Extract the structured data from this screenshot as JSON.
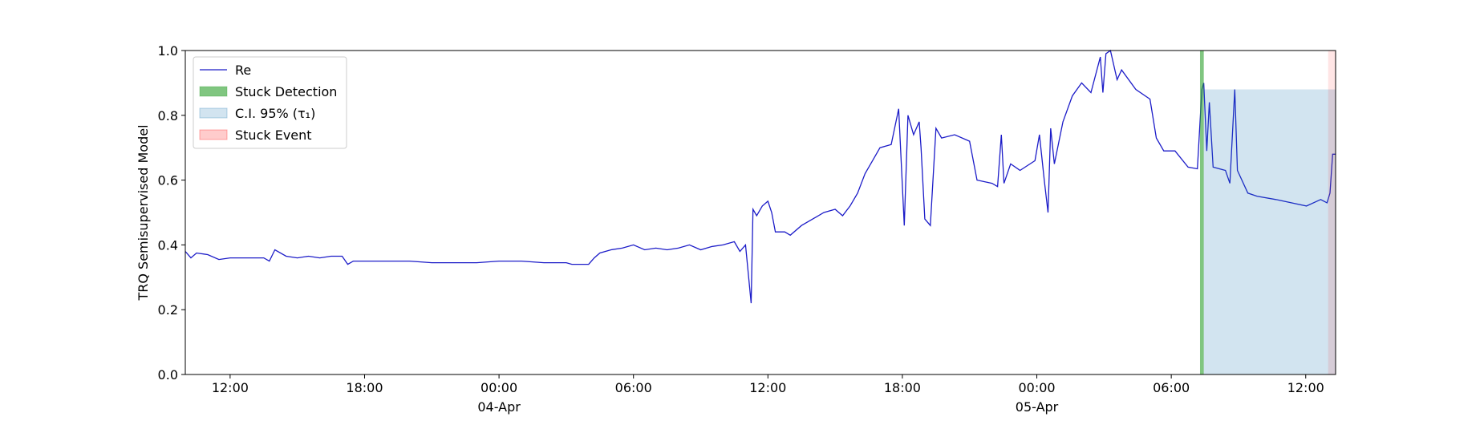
{
  "chart_data": {
    "type": "line",
    "ylabel": "TRQ Semisupervised Model",
    "xlim": [
      "1900-04-03T10:00",
      "1900-04-05T13:20"
    ],
    "xticks": [
      {
        "value": "1900-04-03T12:00",
        "label": "12:00"
      },
      {
        "value": "1900-04-03T18:00",
        "label": "18:00"
      },
      {
        "value": "1900-04-04T00:00",
        "label": "00:00\n04-Apr\n1900"
      },
      {
        "value": "1900-04-04T06:00",
        "label": "06:00"
      },
      {
        "value": "1900-04-04T12:00",
        "label": "12:00"
      },
      {
        "value": "1900-04-04T18:00",
        "label": "18:00"
      },
      {
        "value": "1900-04-05T00:00",
        "label": "00:00\n05-Apr"
      },
      {
        "value": "1900-04-05T06:00",
        "label": "06:00"
      },
      {
        "value": "1900-04-05T12:00",
        "label": "12:00"
      }
    ],
    "ylim": [
      0,
      1
    ],
    "yticks": [
      {
        "value": 0,
        "label": "0.0"
      },
      0.2,
      0.4,
      0.6,
      0.8,
      {
        "value": 1,
        "label": "1.0"
      }
    ],
    "legend": "upper left",
    "x": [
      "1900-04-03T10:00",
      "1900-04-03T10:15",
      "1900-04-03T10:30",
      "1900-04-03T11:00",
      "1900-04-03T11:30",
      "1900-04-03T12:00",
      "1900-04-03T13:00",
      "1900-04-03T13:30",
      "1900-04-03T13:45",
      "1900-04-03T14:00",
      "1900-04-03T14:30",
      "1900-04-03T15:00",
      "1900-04-03T15:30",
      "1900-04-03T16:00",
      "1900-04-03T16:30",
      "1900-04-03T17:00",
      "1900-04-03T17:15",
      "1900-04-03T17:30",
      "1900-04-03T18:00",
      "1900-04-03T19:00",
      "1900-04-03T20:00",
      "1900-04-03T21:00",
      "1900-04-03T22:00",
      "1900-04-03T23:00",
      "1900-04-04T00:00",
      "1900-04-04T01:00",
      "1900-04-04T02:00",
      "1900-04-04T03:00",
      "1900-04-04T03:15",
      "1900-04-04T04:00",
      "1900-04-04T04:15",
      "1900-04-04T04:30",
      "1900-04-04T05:00",
      "1900-04-04T05:30",
      "1900-04-04T06:00",
      "1900-04-04T06:30",
      "1900-04-04T07:00",
      "1900-04-04T07:30",
      "1900-04-04T08:00",
      "1900-04-04T08:30",
      "1900-04-04T09:00",
      "1900-04-04T09:30",
      "1900-04-04T10:00",
      "1900-04-04T10:30",
      "1900-04-04T10:45",
      "1900-04-04T11:00",
      "1900-04-04T11:15",
      "1900-04-04T11:20",
      "1900-04-04T11:30",
      "1900-04-04T11:45",
      "1900-04-04T12:00",
      "1900-04-04T12:10",
      "1900-04-04T12:20",
      "1900-04-04T12:45",
      "1900-04-04T13:00",
      "1900-04-04T13:30",
      "1900-04-04T14:00",
      "1900-04-04T14:30",
      "1900-04-04T15:00",
      "1900-04-04T15:20",
      "1900-04-04T15:40",
      "1900-04-04T16:00",
      "1900-04-04T16:20",
      "1900-04-04T16:40",
      "1900-04-04T17:00",
      "1900-04-04T17:30",
      "1900-04-04T17:50",
      "1900-04-04T18:05",
      "1900-04-04T18:15",
      "1900-04-04T18:30",
      "1900-04-04T18:45",
      "1900-04-04T18:50",
      "1900-04-04T19:00",
      "1900-04-04T19:15",
      "1900-04-04T19:30",
      "1900-04-04T19:45",
      "1900-04-04T20:20",
      "1900-04-04T21:00",
      "1900-04-04T21:20",
      "1900-04-04T22:00",
      "1900-04-04T22:15",
      "1900-04-04T22:25",
      "1900-04-04T22:32",
      "1900-04-04T22:50",
      "1900-04-04T23:15",
      "1900-04-04T23:55",
      "1900-04-05T00:07",
      "1900-04-05T00:20",
      "1900-04-05T00:30",
      "1900-04-05T00:37",
      "1900-04-05T00:47",
      "1900-04-05T01:10",
      "1900-04-05T01:35",
      "1900-04-05T02:00",
      "1900-04-05T02:25",
      "1900-04-05T02:50",
      "1900-04-05T02:57",
      "1900-04-05T03:05",
      "1900-04-05T03:17",
      "1900-04-05T03:35",
      "1900-04-05T03:47",
      "1900-04-05T04:25",
      "1900-04-05T05:03",
      "1900-04-05T05:20",
      "1900-04-05T05:40",
      "1900-04-05T06:10",
      "1900-04-05T06:45",
      "1900-04-05T07:10",
      "1900-04-05T07:22",
      "1900-04-05T07:27",
      "1900-04-05T07:35",
      "1900-04-05T07:42",
      "1900-04-05T07:52",
      "1900-04-05T08:25",
      "1900-04-05T08:37",
      "1900-04-05T08:50",
      "1900-04-05T08:57",
      "1900-04-05T09:25",
      "1900-04-05T09:50",
      "1900-04-05T10:40",
      "1900-04-05T12:02",
      "1900-04-05T12:40",
      "1900-04-05T12:57",
      "1900-04-05T13:05",
      "1900-04-05T13:12",
      "1900-04-05T13:20"
    ],
    "series": [
      {
        "name": "Re",
        "color": "#1c1cc8",
        "values": [
          0.38,
          0.36,
          0.375,
          0.37,
          0.355,
          0.36,
          0.36,
          0.36,
          0.35,
          0.385,
          0.365,
          0.36,
          0.365,
          0.36,
          0.365,
          0.365,
          0.34,
          0.35,
          0.35,
          0.35,
          0.35,
          0.345,
          0.345,
          0.345,
          0.35,
          0.35,
          0.345,
          0.345,
          0.34,
          0.34,
          0.36,
          0.375,
          0.385,
          0.39,
          0.4,
          0.385,
          0.39,
          0.385,
          0.39,
          0.4,
          0.385,
          0.395,
          0.4,
          0.41,
          0.38,
          0.4,
          0.22,
          0.51,
          0.49,
          0.52,
          0.535,
          0.5,
          0.44,
          0.44,
          0.43,
          0.46,
          0.48,
          0.5,
          0.51,
          0.49,
          0.52,
          0.56,
          0.62,
          0.66,
          0.7,
          0.71,
          0.82,
          0.46,
          0.8,
          0.74,
          0.78,
          0.7,
          0.48,
          0.46,
          0.76,
          0.73,
          0.74,
          0.72,
          0.6,
          0.59,
          0.58,
          0.74,
          0.59,
          0.65,
          0.63,
          0.66,
          0.74,
          0.6,
          0.5,
          0.76,
          0.65,
          0.78,
          0.86,
          0.9,
          0.87,
          0.98,
          0.87,
          0.99,
          1.0,
          0.91,
          0.94,
          0.88,
          0.85,
          0.73,
          0.69,
          0.69,
          0.64,
          0.635,
          0.88,
          0.9,
          0.69,
          0.84,
          0.64,
          0.63,
          0.59,
          0.88,
          0.63,
          0.56,
          0.55,
          0.54,
          0.52,
          0.54,
          0.53,
          0.56,
          0.68,
          0.68
        ]
      }
    ],
    "spans": [
      {
        "name": "Stuck Detection",
        "color": "#2ca02c",
        "alpha": 0.6,
        "x": [
          "1900-04-05T07:17",
          "1900-04-05T07:27"
        ],
        "y": [
          0,
          1
        ]
      },
      {
        "name": "C.I. 95% (τ₁)",
        "color": "#1f77b4",
        "alpha": 0.2,
        "x": [
          "1900-04-05T07:27",
          "1900-04-05T13:20"
        ],
        "y": [
          0,
          0.88
        ]
      },
      {
        "name": "Stuck Event",
        "color": "#ff0000",
        "alpha": 0.1,
        "x": [
          "1900-04-05T13:00",
          "1900-04-05T13:20"
        ],
        "y": [
          0,
          1
        ]
      }
    ]
  }
}
